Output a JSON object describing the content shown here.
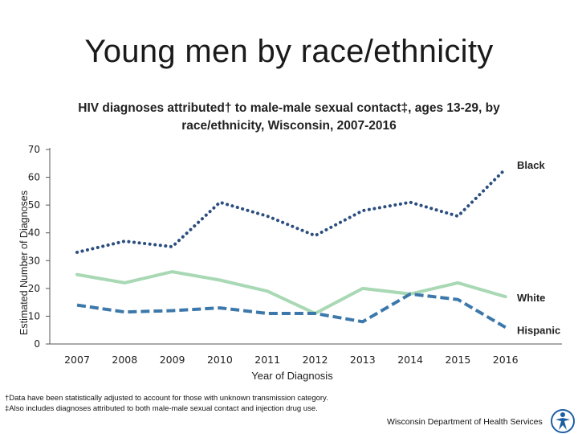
{
  "slide_title": "Young men by race/ethnicity",
  "chart_data": {
    "type": "line",
    "title": "HIV diagnoses attributed† to male-male sexual contact‡, ages 13-29, by race/ethnicity, Wisconsin, 2007-2016",
    "title_lines": [
      "HIV diagnoses attributed† to male-male sexual contact‡, ages 13-29, by",
      "race/ethnicity, Wisconsin, 2007-2016"
    ],
    "xlabel": "Year of Diagnosis",
    "ylabel": "Estimated Number of Diagnoses",
    "x": [
      "2007",
      "2008",
      "2009",
      "2010",
      "2011",
      "2012",
      "2013",
      "2014",
      "2015",
      "2016"
    ],
    "ylim": [
      0,
      70
    ],
    "yticks": [
      0,
      10,
      20,
      30,
      40,
      50,
      60,
      70
    ],
    "grid": false,
    "series": [
      {
        "name": "Black",
        "values": [
          33,
          37,
          35,
          51,
          46,
          39,
          48,
          51,
          46,
          63
        ],
        "color": "#2b4e7e",
        "style": "dotted"
      },
      {
        "name": "White",
        "values": [
          25,
          22,
          26,
          23,
          19,
          11,
          20,
          18,
          22,
          17
        ],
        "color": "#a8d8b4",
        "style": "solid"
      },
      {
        "name": "Hispanic",
        "values": [
          14,
          11.5,
          12,
          13,
          11,
          11,
          8,
          18,
          16,
          6
        ],
        "color": "#3d78ab",
        "style": "dashed"
      }
    ]
  },
  "footnotes": [
    "†Data have been statistically adjusted to account for those with unknown transmission category.",
    "‡Also includes diagnoses attributed to both male-male sexual contact and injection drug use."
  ],
  "agency": "Wisconsin Department of Health Services",
  "colors": {
    "axis": "#555555",
    "logo": "#1e5fa3"
  }
}
